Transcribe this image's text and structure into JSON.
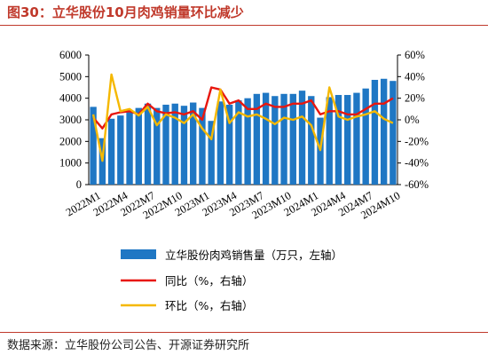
{
  "figure": {
    "title": "图30：立华股份10月肉鸡销量环比减少",
    "source": "数据来源：立华股份公司公告、开源证券研究所"
  },
  "chart_data": {
    "type": "bar",
    "colors": {
      "bar": "#1f77c4",
      "yoy": "#e8170f",
      "mom": "#f5b800"
    },
    "left_axis": {
      "ylim": [
        0,
        6000
      ],
      "ticks": [
        "0",
        "1000",
        "2000",
        "3000",
        "4000",
        "5000",
        "6000"
      ]
    },
    "right_axis": {
      "ylim": [
        -60,
        60
      ],
      "ticks": [
        "-60%",
        "-40%",
        "-20%",
        "0%",
        "20%",
        "40%",
        "60%"
      ]
    },
    "categories": [
      "2022M1",
      "2022M2",
      "2022M3",
      "2022M4",
      "2022M5",
      "2022M6",
      "2022M7",
      "2022M8",
      "2022M9",
      "2022M10",
      "2022M11",
      "2022M12",
      "2023M1",
      "2023M2",
      "2023M3",
      "2023M4",
      "2023M5",
      "2023M6",
      "2023M7",
      "2023M8",
      "2023M9",
      "2023M10",
      "2023M11",
      "2023M12",
      "2024M1",
      "2024M2",
      "2024M3",
      "2024M4",
      "2024M5",
      "2024M6",
      "2024M7",
      "2024M8",
      "2024M9",
      "2024M10"
    ],
    "x_tick_labels": [
      "2022M1",
      "2022M4",
      "2022M7",
      "2022M10",
      "2023M1",
      "2023M4",
      "2023M7",
      "2023M10",
      "2024M1",
      "2024M4",
      "2024M7",
      "2024M10"
    ],
    "series": [
      {
        "name": "立华股份肉鸡销售量（万只，左轴）",
        "axis": "left",
        "kind": "bar",
        "values": [
          3600,
          2150,
          3050,
          3200,
          3350,
          3550,
          3750,
          3550,
          3700,
          3750,
          3650,
          3800,
          3550,
          2950,
          3850,
          3700,
          3900,
          4000,
          4200,
          4250,
          4100,
          4200,
          4200,
          4350,
          4100,
          3100,
          4050,
          4150,
          4150,
          4250,
          4450,
          4850,
          4900,
          4800
        ]
      },
      {
        "name": "同比（%，右轴）",
        "axis": "right",
        "kind": "line",
        "values": [
          2,
          -8,
          5,
          7,
          8,
          5,
          15,
          8,
          6,
          7,
          5,
          8,
          0,
          30,
          28,
          15,
          18,
          10,
          10,
          15,
          12,
          12,
          15,
          15,
          18,
          5,
          8,
          8,
          5,
          5,
          10,
          15,
          15,
          20
        ]
      },
      {
        "name": "环比（%，右轴）",
        "axis": "right",
        "kind": "line",
        "values": [
          5,
          -38,
          42,
          8,
          10,
          4,
          12,
          -5,
          5,
          2,
          -3,
          5,
          -8,
          -18,
          28,
          -3,
          7,
          3,
          5,
          1,
          -4,
          2,
          0,
          3,
          -5,
          -28,
          30,
          3,
          0,
          3,
          5,
          8,
          1,
          -3
        ]
      }
    ]
  }
}
